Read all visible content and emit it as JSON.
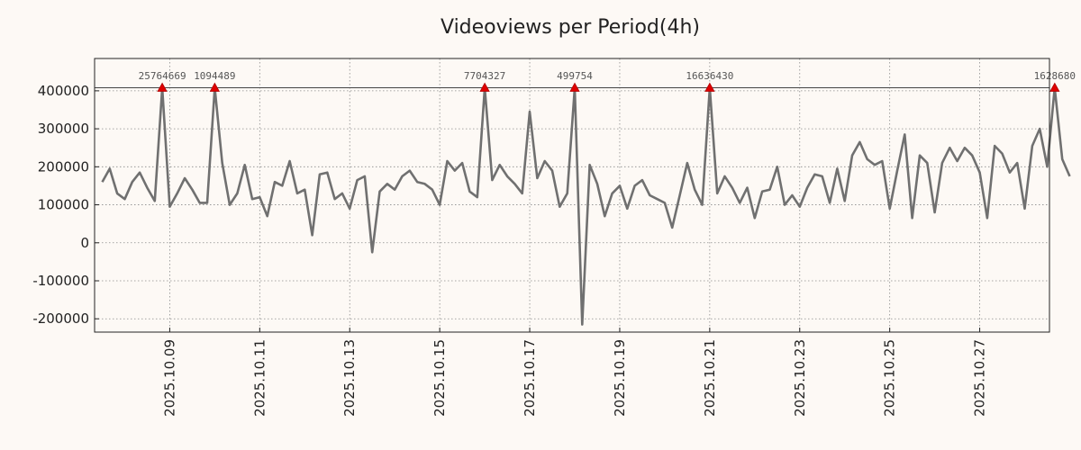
{
  "chart_data": {
    "type": "line",
    "title": "Videoviews per Period(4h)",
    "xlabel": "",
    "ylabel": "",
    "x_start": "2025-10-07T12:00",
    "x_step_hours": 4,
    "xlim_days": [
      7.33,
      28.55
    ],
    "ylim": [
      -235000,
      485000
    ],
    "yticks": [
      -200000,
      -100000,
      0,
      100000,
      200000,
      300000,
      400000
    ],
    "ytick_labels": [
      "-200000",
      "-100000",
      "0",
      "100000",
      "200000",
      "300000",
      "400000"
    ],
    "xticks_days": [
      9,
      11,
      13,
      15,
      17,
      19,
      21,
      23,
      25,
      27
    ],
    "xtick_labels": [
      "2025.10.09",
      "2025.10.11",
      "2025.10.13",
      "2025.10.15",
      "2025.10.17",
      "2025.10.19",
      "2025.10.21",
      "2025.10.23",
      "2025.10.25",
      "2025.10.27"
    ],
    "grid": true,
    "clip_line_value": 408000,
    "series": [
      {
        "name": "Videoviews",
        "color": "#707070",
        "values": [
          160000,
          195000,
          130000,
          115000,
          160000,
          185000,
          145000,
          110000,
          408000,
          95000,
          130000,
          170000,
          140000,
          105000,
          105000,
          408000,
          210000,
          100000,
          130000,
          205000,
          115000,
          120000,
          70000,
          160000,
          150000,
          215000,
          130000,
          140000,
          20000,
          180000,
          185000,
          115000,
          130000,
          90000,
          165000,
          175000,
          -25000,
          135000,
          155000,
          140000,
          175000,
          190000,
          160000,
          155000,
          140000,
          100000,
          215000,
          190000,
          210000,
          135000,
          120000,
          408000,
          165000,
          205000,
          175000,
          155000,
          130000,
          345000,
          170000,
          215000,
          190000,
          95000,
          130000,
          408000,
          -215000,
          205000,
          155000,
          70000,
          130000,
          150000,
          90000,
          150000,
          165000,
          125000,
          115000,
          105000,
          40000,
          125000,
          210000,
          140000,
          100000,
          408000,
          130000,
          175000,
          145000,
          105000,
          145000,
          65000,
          135000,
          140000,
          200000,
          100000,
          125000,
          95000,
          145000,
          180000,
          175000,
          105000,
          195000,
          110000,
          230000,
          265000,
          220000,
          205000,
          215000,
          90000,
          190000,
          285000,
          65000,
          230000,
          210000,
          80000,
          210000,
          250000,
          215000,
          250000,
          230000,
          185000,
          65000,
          255000,
          235000,
          185000,
          210000,
          90000,
          255000,
          300000,
          200000,
          408000,
          220000,
          175000
        ]
      }
    ],
    "annotations": [
      {
        "label": "25764669",
        "index": 8,
        "marker": "triangle-up",
        "color": "#e00000"
      },
      {
        "label": "1094489",
        "index": 15,
        "marker": "triangle-up",
        "color": "#e00000"
      },
      {
        "label": "7704327",
        "index": 51,
        "marker": "triangle-up",
        "color": "#e00000"
      },
      {
        "label": "499754",
        "index": 63,
        "marker": "triangle-up",
        "color": "#e00000"
      },
      {
        "label": "16636430",
        "index": 81,
        "marker": "triangle-up",
        "color": "#e00000"
      },
      {
        "label": "1628680",
        "index": 127,
        "marker": "triangle-up",
        "color": "#e00000"
      }
    ]
  }
}
